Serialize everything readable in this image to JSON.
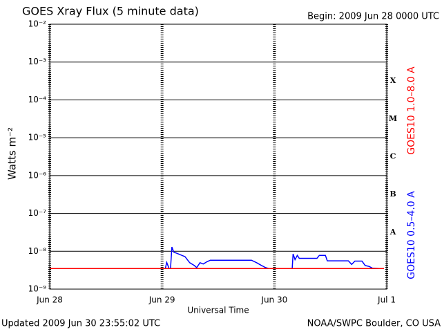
{
  "chart_data": {
    "type": "line",
    "title": "GOES Xray Flux (5 minute data)",
    "subtitle": "Begin:  2009 Jun 28 0000 UTC",
    "ylabel": "Watts m⁻²",
    "xlabel": "Universal Time",
    "footer_left": "Updated 2009 Jun 30 23:55:02 UTC",
    "footer_right": "NOAA/SWPC Boulder, CO USA",
    "flare_classes": [
      "A",
      "B",
      "C",
      "M",
      "X"
    ],
    "ylog": true,
    "grid": true,
    "xlim": [
      0,
      72
    ],
    "xticks": [
      {
        "value": 0,
        "label": "Jun 28"
      },
      {
        "value": 24,
        "label": "Jun 29"
      },
      {
        "value": 48,
        "label": "Jun 30"
      },
      {
        "value": 72,
        "label": "Jul 1"
      }
    ],
    "ylim": [
      1e-09,
      0.01
    ],
    "yticks": [
      {
        "value": 1e-09,
        "label": "10⁻⁹"
      },
      {
        "value": 1e-08,
        "label": "10⁻⁸"
      },
      {
        "value": 1e-07,
        "label": "10⁻⁷"
      },
      {
        "value": 1e-06,
        "label": "10⁻⁶"
      },
      {
        "value": 1e-05,
        "label": "10⁻⁵"
      },
      {
        "value": 0.0001,
        "label": "10⁻⁴"
      },
      {
        "value": 0.001,
        "label": "10⁻³"
      },
      {
        "value": 0.01,
        "label": "10⁻²"
      }
    ],
    "series": [
      {
        "name": "GOES10 1.0–8.0 A",
        "color": "#ff0000",
        "x": [
          0,
          71.4
        ],
        "values": [
          3.5e-09,
          3.5e-09
        ]
      },
      {
        "name": "GOES10 0.5–4.0 A",
        "color": "#0000ff",
        "x": [
          0,
          24.7,
          25.0,
          25.5,
          25.8,
          26.1,
          26.5,
          27.1,
          28.0,
          28.9,
          29.9,
          30.9,
          31.4,
          32.1,
          32.8,
          33.6,
          34.3,
          43.1,
          44.2,
          45.1,
          46.1,
          46.8,
          51.8,
          52.0,
          52.4,
          52.9,
          53.3,
          57.1,
          57.6,
          58.9,
          59.3,
          63.8,
          64.5,
          65.2,
          66.7,
          67.4,
          68.2,
          68.9,
          70.4,
          71.4
        ],
        "values": [
          3.5e-09,
          3.5e-09,
          5.1e-09,
          3.5e-09,
          3.5e-09,
          1.3e-08,
          9.5e-09,
          8.9e-09,
          8e-09,
          7.2e-09,
          5e-09,
          4.2e-09,
          3.7e-09,
          5e-09,
          4.6e-09,
          5.3e-09,
          5.8e-09,
          5.8e-09,
          5e-09,
          4.3e-09,
          3.7e-09,
          3.5e-09,
          3.5e-09,
          8.5e-09,
          6e-09,
          7.8e-09,
          6.5e-09,
          6.5e-09,
          7.8e-09,
          7.8e-09,
          5.6e-09,
          5.6e-09,
          4.5e-09,
          5.5e-09,
          5.5e-09,
          4.2e-09,
          4e-09,
          3.6e-09,
          3.5e-09,
          3.5e-09
        ]
      }
    ]
  }
}
